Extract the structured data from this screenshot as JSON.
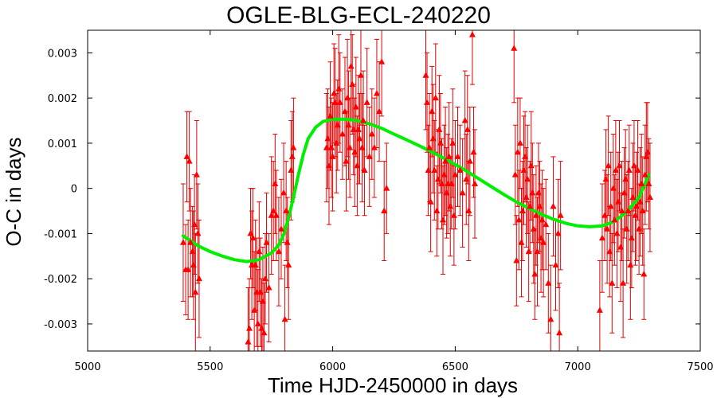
{
  "chart_data": {
    "type": "scatter",
    "title": "OGLE-BLG-ECL-240220",
    "xlabel": "Time HJD-2450000 in days",
    "ylabel": "O-C in days",
    "xlim": [
      5000,
      7500
    ],
    "ylim": [
      -0.0036,
      0.0035
    ],
    "xticks": [
      5000,
      5500,
      6000,
      6500,
      7000,
      7500
    ],
    "yticks": [
      -0.003,
      -0.002,
      -0.001,
      0,
      0.001,
      0.002,
      0.003
    ],
    "ytick_labels": [
      "-0.003",
      "-0.002",
      "-0.001",
      "0",
      "0.001",
      "0.002",
      "0.003"
    ],
    "grid": false,
    "legend": "none",
    "colors": {
      "points": "#ff0000",
      "errorbars": "#e00000",
      "fit": "#00ee00"
    },
    "series": [
      {
        "kind": "points-with-errorbars",
        "points": [
          [
            5390,
            -0.0012,
            0.0013
          ],
          [
            5400,
            -0.0018,
            0.001
          ],
          [
            5405,
            0.0007,
            0.001
          ],
          [
            5410,
            -0.0018,
            0.0011
          ],
          [
            5415,
            0.0006,
            0.0011
          ],
          [
            5420,
            -0.0012,
            0.0012
          ],
          [
            5428,
            -0.0014,
            0.001
          ],
          [
            5432,
            -0.0017,
            0.0012
          ],
          [
            5436,
            -0.0008,
            0.0011
          ],
          [
            5440,
            -0.0023,
            0.0013
          ],
          [
            5445,
            0.0003,
            0.0012
          ],
          [
            5450,
            -0.001,
            0.0011
          ],
          [
            5455,
            -0.002,
            0.0013
          ],
          [
            5655,
            -0.0034,
            0.0012
          ],
          [
            5660,
            -0.0031,
            0.0011
          ],
          [
            5665,
            -0.001,
            0.001
          ],
          [
            5670,
            -0.0017,
            0.0012
          ],
          [
            5675,
            -0.0011,
            0.0011
          ],
          [
            5680,
            -0.0027,
            0.0013
          ],
          [
            5685,
            -0.0017,
            0.001
          ],
          [
            5690,
            -0.0023,
            0.0012
          ],
          [
            5695,
            -0.003,
            0.0012
          ],
          [
            5700,
            -0.0014,
            0.0011
          ],
          [
            5705,
            -0.0023,
            0.0012
          ],
          [
            5710,
            -0.0031,
            0.0011
          ],
          [
            5715,
            -0.0025,
            0.0012
          ],
          [
            5720,
            -0.0032,
            0.0011
          ],
          [
            5725,
            -0.002,
            0.001
          ],
          [
            5730,
            -0.0012,
            0.0011
          ],
          [
            5740,
            -0.0022,
            0.0012
          ],
          [
            5750,
            -0.0006,
            0.0013
          ],
          [
            5758,
            -0.0005,
            0.0011
          ],
          [
            5765,
            0.0001,
            0.0011
          ],
          [
            5770,
            -0.0006,
            0.001
          ],
          [
            5780,
            -0.0014,
            0.0012
          ],
          [
            5790,
            -0.0009,
            0.0011
          ],
          [
            5800,
            -0.0001,
            0.0011
          ],
          [
            5805,
            -0.0029,
            0.0012
          ],
          [
            5810,
            -0.0005,
            0.0011
          ],
          [
            5815,
            -0.0012,
            0.001
          ],
          [
            5820,
            -0.0017,
            0.0012
          ],
          [
            5830,
            0.0004,
            0.0011
          ],
          [
            5835,
            0.0007,
            0.001
          ],
          [
            5840,
            0.0009,
            0.0011
          ],
          [
            5975,
            0.0009,
            0.0012
          ],
          [
            5980,
            0.0011,
            0.0011
          ],
          [
            5985,
            0.0005,
            0.0013
          ],
          [
            5990,
            0.0016,
            0.0012
          ],
          [
            5995,
            0.0009,
            0.0011
          ],
          [
            6000,
            0.0007,
            0.0012
          ],
          [
            6005,
            0.0021,
            0.0011
          ],
          [
            6010,
            0.0019,
            0.0012
          ],
          [
            6015,
            0.001,
            0.0011
          ],
          [
            6020,
            0.0014,
            0.001
          ],
          [
            6025,
            0.0022,
            0.0012
          ],
          [
            6030,
            0.0019,
            0.0011
          ],
          [
            6040,
            0.0012,
            0.001
          ],
          [
            6050,
            0.0017,
            0.0012
          ],
          [
            6055,
            0.0006,
            0.0011
          ],
          [
            6060,
            0.002,
            0.0013
          ],
          [
            6065,
            0.0014,
            0.0012
          ],
          [
            6070,
            0.0009,
            0.0011
          ],
          [
            6075,
            0.0027,
            0.0012
          ],
          [
            6080,
            0.0023,
            0.0011
          ],
          [
            6085,
            0.0013,
            0.001
          ],
          [
            6090,
            0.0008,
            0.0012
          ],
          [
            6095,
            0.0018,
            0.0011
          ],
          [
            6100,
            0.0005,
            0.0011
          ],
          [
            6105,
            0.0013,
            0.0012
          ],
          [
            6110,
            0.0011,
            0.001
          ],
          [
            6115,
            0.0025,
            0.0011
          ],
          [
            6120,
            0.0009,
            0.0012
          ],
          [
            6125,
            0.0015,
            0.0011
          ],
          [
            6130,
            0.0004,
            0.001
          ],
          [
            6140,
            0.0019,
            0.0012
          ],
          [
            6150,
            0.0007,
            0.0011
          ],
          [
            6160,
            0.0012,
            0.001
          ],
          [
            6170,
            0.0009,
            0.0011
          ],
          [
            6180,
            0.0021,
            0.0012
          ],
          [
            6190,
            0.0017,
            0.0011
          ],
          [
            6200,
            0.0028,
            0.0012
          ],
          [
            6210,
            -0.0005,
            0.0011
          ],
          [
            6220,
            0.0,
            0.001
          ],
          [
            6380,
            0.0025,
            0.0012
          ],
          [
            6385,
            0.0019,
            0.0011
          ],
          [
            6390,
            0.0004,
            0.001
          ],
          [
            6395,
            0.0009,
            0.0012
          ],
          [
            6400,
            -0.0003,
            0.0011
          ],
          [
            6405,
            0.0017,
            0.001
          ],
          [
            6410,
            0.0011,
            0.0012
          ],
          [
            6415,
            0.0004,
            0.0011
          ],
          [
            6420,
            0.002,
            0.0012
          ],
          [
            6425,
            -0.0005,
            0.001
          ],
          [
            6430,
            0.0002,
            0.0011
          ],
          [
            6435,
            0.0013,
            0.0012
          ],
          [
            6440,
            0.001,
            0.0011
          ],
          [
            6445,
            0.0001,
            0.001
          ],
          [
            6450,
            -0.0007,
            0.0012
          ],
          [
            6455,
            0.0003,
            0.0011
          ],
          [
            6460,
            0.0006,
            0.0012
          ],
          [
            6465,
            -0.0001,
            0.001
          ],
          [
            6470,
            0.0001,
            0.0011
          ],
          [
            6475,
            0.0007,
            0.0012
          ],
          [
            6480,
            -0.0004,
            0.0011
          ],
          [
            6485,
            0.0001,
            0.001
          ],
          [
            6490,
            0.001,
            0.0012
          ],
          [
            6495,
            -0.0006,
            0.0011
          ],
          [
            6500,
            0.0003,
            0.0012
          ],
          [
            6510,
            0.0007,
            0.0011
          ],
          [
            6520,
            0.0004,
            0.001
          ],
          [
            6530,
            -0.0001,
            0.0012
          ],
          [
            6540,
            0.0015,
            0.0011
          ],
          [
            6545,
            0.0002,
            0.001
          ],
          [
            6550,
            0.0013,
            0.0012
          ],
          [
            6555,
            -0.0005,
            0.0011
          ],
          [
            6560,
            0.0006,
            0.0012
          ],
          [
            6570,
            0.0034,
            0.0011
          ],
          [
            6575,
            0.0008,
            0.001
          ],
          [
            6580,
            0.0001,
            0.0012
          ],
          [
            6740,
            0.0031,
            0.0012
          ],
          [
            6745,
            0.0003,
            0.0011
          ],
          [
            6750,
            -0.0016,
            0.001
          ],
          [
            6755,
            0.0008,
            0.0012
          ],
          [
            6760,
            -0.0007,
            0.0011
          ],
          [
            6765,
            0.001,
            0.001
          ],
          [
            6770,
            -0.0012,
            0.0012
          ],
          [
            6775,
            -0.0005,
            0.0011
          ],
          [
            6780,
            0.0004,
            0.0012
          ],
          [
            6785,
            0.0007,
            0.001
          ],
          [
            6790,
            -0.0002,
            0.0011
          ],
          [
            6795,
            0.0002,
            0.0012
          ],
          [
            6800,
            -0.0014,
            0.0011
          ],
          [
            6805,
            -0.0004,
            0.001
          ],
          [
            6810,
            0.0005,
            0.0012
          ],
          [
            6815,
            -0.0001,
            0.0011
          ],
          [
            6820,
            -0.0009,
            0.0012
          ],
          [
            6825,
            -0.0019,
            0.001
          ],
          [
            6830,
            -0.0006,
            0.0011
          ],
          [
            6835,
            -0.0014,
            0.0012
          ],
          [
            6840,
            -0.0001,
            0.0011
          ],
          [
            6845,
            -0.0004,
            0.001
          ],
          [
            6850,
            -0.0011,
            0.0012
          ],
          [
            6855,
            -0.0007,
            0.0011
          ],
          [
            6860,
            -0.0012,
            0.0012
          ],
          [
            6870,
            -0.0008,
            0.001
          ],
          [
            6880,
            -0.0021,
            0.0011
          ],
          [
            6890,
            -0.0029,
            0.0012
          ],
          [
            6900,
            -0.0004,
            0.0011
          ],
          [
            6910,
            -0.0017,
            0.001
          ],
          [
            6920,
            -0.001,
            0.0012
          ],
          [
            6925,
            -0.0032,
            0.0011
          ],
          [
            6930,
            -0.0006,
            0.0012
          ],
          [
            7090,
            -0.0027,
            0.0011
          ],
          [
            7100,
            -0.0011,
            0.0012
          ],
          [
            7110,
            -0.0006,
            0.001
          ],
          [
            7115,
            0.0002,
            0.0011
          ],
          [
            7120,
            -0.0009,
            0.0012
          ],
          [
            7125,
            0.0005,
            0.0011
          ],
          [
            7130,
            -0.0014,
            0.001
          ],
          [
            7135,
            -0.0004,
            0.0012
          ],
          [
            7140,
            -0.0021,
            0.0011
          ],
          [
            7145,
            0.0,
            0.0012
          ],
          [
            7150,
            -0.0007,
            0.001
          ],
          [
            7155,
            0.0004,
            0.0011
          ],
          [
            7160,
            -0.001,
            0.0012
          ],
          [
            7165,
            -0.0003,
            0.0011
          ],
          [
            7170,
            0.0005,
            0.001
          ],
          [
            7175,
            -0.0013,
            0.0012
          ],
          [
            7180,
            -0.0005,
            0.0011
          ],
          [
            7185,
            -0.0021,
            0.0012
          ],
          [
            7190,
            -0.0001,
            0.001
          ],
          [
            7195,
            0.0002,
            0.0011
          ],
          [
            7200,
            -0.0009,
            0.0012
          ],
          [
            7205,
            -0.0005,
            0.0011
          ],
          [
            7210,
            0.0004,
            0.001
          ],
          [
            7215,
            -0.0017,
            0.0012
          ],
          [
            7220,
            -0.0011,
            0.0011
          ],
          [
            7225,
            -0.0002,
            0.0012
          ],
          [
            7230,
            0.0005,
            0.001
          ],
          [
            7235,
            -0.0006,
            0.0011
          ],
          [
            7240,
            -0.0004,
            0.0012
          ],
          [
            7245,
            0.0004,
            0.0011
          ],
          [
            7250,
            -0.0009,
            0.001
          ],
          [
            7255,
            -0.0003,
            0.0012
          ],
          [
            7260,
            0.0001,
            0.0011
          ],
          [
            7265,
            -0.0005,
            0.0012
          ],
          [
            7270,
            -0.0019,
            0.001
          ],
          [
            7275,
            0.0003,
            0.0011
          ],
          [
            7280,
            0.0007,
            0.0012
          ],
          [
            7285,
            0.0008,
            0.0011
          ],
          [
            7290,
            0.0001,
            0.001
          ],
          [
            7295,
            -0.0002,
            0.0012
          ]
        ]
      },
      {
        "kind": "fit-curve",
        "x": [
          5390,
          5450,
          5500,
          5550,
          5600,
          5650,
          5700,
          5750,
          5780,
          5800,
          5820,
          5840,
          5860,
          5880,
          5900,
          5930,
          5960,
          6000,
          6050,
          6100,
          6150,
          6200,
          6250,
          6300,
          6350,
          6400,
          6450,
          6500,
          6550,
          6600,
          6650,
          6700,
          6750,
          6800,
          6850,
          6900,
          6950,
          7000,
          7050,
          7100,
          7150,
          7200,
          7250,
          7290
        ],
        "y": [
          -0.00105,
          -0.00127,
          -0.0014,
          -0.0015,
          -0.00158,
          -0.00162,
          -0.00158,
          -0.00143,
          -0.00125,
          -0.00102,
          -0.00065,
          -0.0002,
          0.0003,
          0.00075,
          0.0011,
          0.00135,
          0.00148,
          0.00153,
          0.00153,
          0.0015,
          0.00143,
          0.00133,
          0.0012,
          0.00108,
          0.00095,
          0.00082,
          0.00068,
          0.00053,
          0.00037,
          0.0002,
          3e-05,
          -0.00014,
          -0.0003,
          -0.00044,
          -0.00057,
          -0.00068,
          -0.00077,
          -0.00083,
          -0.00085,
          -0.00083,
          -0.00073,
          -0.00052,
          -0.0002,
          0.0003
        ]
      }
    ]
  }
}
